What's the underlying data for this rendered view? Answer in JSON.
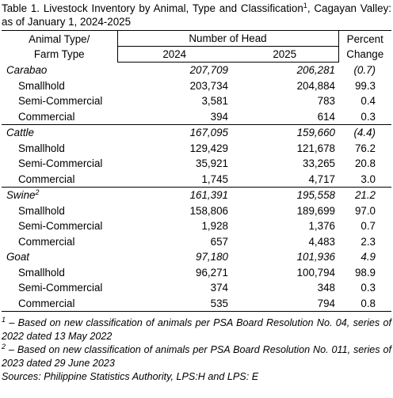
{
  "title": {
    "before": "Table 1. Livestock Inventory by Animal, Type and Classification",
    "sup": "1",
    "after": ", Cagayan Valley: as of January 1, 2024-2025"
  },
  "header": {
    "animal_line1": "Animal Type/",
    "animal_line2": "Farm Type",
    "number_of_head": "Number of Head",
    "year1": "2024",
    "year2": "2025",
    "percent_line1": "Percent",
    "percent_line2": "Change"
  },
  "groups": [
    {
      "label": "Carabao",
      "values": [
        "207,709",
        "206,281",
        "(0.7)"
      ],
      "types": [
        {
          "label": "Smallhold",
          "values": [
            "203,734",
            "204,884",
            "99.3"
          ]
        },
        {
          "label": "Semi-Commercial",
          "values": [
            "3,581",
            "783",
            "0.4"
          ]
        },
        {
          "label": "Commercial",
          "values": [
            "394",
            "614",
            "0.3"
          ]
        }
      ]
    },
    {
      "label": "Cattle",
      "values": [
        "167,095",
        "159,660",
        "(4.4)"
      ],
      "types": [
        {
          "label": "Smallhold",
          "values": [
            "129,429",
            "121,678",
            "76.2"
          ]
        },
        {
          "label": "Semi-Commercial",
          "values": [
            "35,921",
            "33,265",
            "20.8"
          ]
        },
        {
          "label": "Commercial",
          "values": [
            "1,745",
            "4,717",
            "3.0"
          ]
        }
      ]
    },
    {
      "label": "Swine",
      "label_sup": "2",
      "values": [
        "161,391",
        "195,558",
        "21.2"
      ],
      "types": [
        {
          "label": "Smallhold",
          "values": [
            "158,806",
            "189,699",
            "97.0"
          ]
        },
        {
          "label": "Semi-Commercial",
          "values": [
            "1,928",
            "1,376",
            "0.7"
          ]
        },
        {
          "label": "Commercial",
          "values": [
            "657",
            "4,483",
            "2.3"
          ]
        }
      ]
    },
    {
      "label": "Goat",
      "values": [
        "97,180",
        "101,936",
        "4.9"
      ],
      "types": [
        {
          "label": "Smallhold",
          "values": [
            "96,271",
            "100,794",
            "98.9"
          ]
        },
        {
          "label": "Semi-Commercial",
          "values": [
            "374",
            "348",
            "0.3"
          ]
        },
        {
          "label": "Commercial",
          "values": [
            "535",
            "794",
            "0.8"
          ]
        }
      ]
    }
  ],
  "footnotes": [
    {
      "mark": "1",
      "text": " – Based on new classification of animals per PSA Board Resolution No. 04, series of 2022 dated 13 May 2022"
    },
    {
      "mark": "2",
      "text": " – Based on new classification of animals per PSA Board Resolution No. 011, series of 2023 dated 29 June 2023"
    }
  ],
  "sources": "Sources: Philippine Statistics Authority, LPS:H and LPS: E"
}
